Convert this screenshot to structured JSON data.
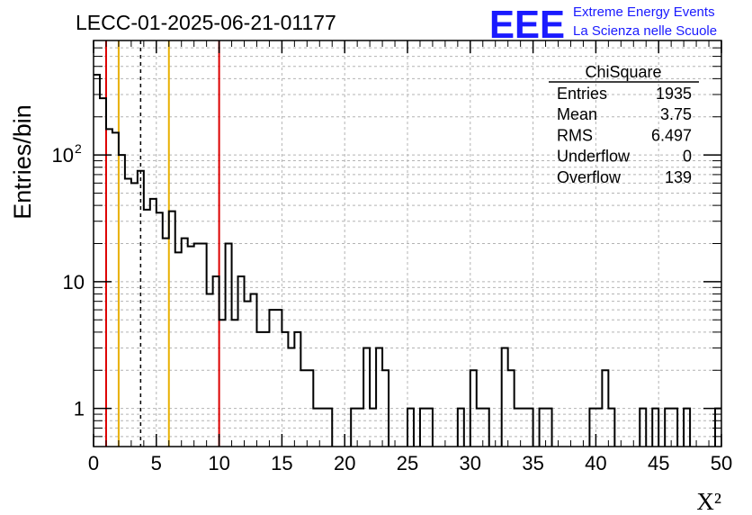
{
  "header": {
    "title": "LECC-01-2025-06-21-01177",
    "logo_text": "EEE",
    "logo_line1": "Extreme Energy Events",
    "logo_line2": "La Scienza nelle Scuole",
    "logo_color": "#1a1aff"
  },
  "stats_box": {
    "title": "ChiSquare",
    "rows": [
      {
        "label": "Entries",
        "value": "1935"
      },
      {
        "label": "Mean",
        "value": "3.75"
      },
      {
        "label": "RMS",
        "value": "6.497"
      },
      {
        "label": "Underflow",
        "value": "0"
      },
      {
        "label": "Overflow",
        "value": "139"
      }
    ]
  },
  "chart_data": {
    "type": "histogram",
    "xlabel": "X²",
    "ylabel": "Entries/bin",
    "xlim": [
      0,
      50
    ],
    "ylim": [
      0.5,
      800
    ],
    "ylog": true,
    "grid": true,
    "bin_width": 1,
    "x_ticks": [
      "0",
      "5",
      "10",
      "15",
      "20",
      "25",
      "30",
      "35",
      "40",
      "45",
      "50"
    ],
    "x_tick_values": [
      0,
      5,
      10,
      15,
      20,
      25,
      30,
      35,
      40,
      45,
      50
    ],
    "y_ticks": [
      {
        "value": 1,
        "label": "1"
      },
      {
        "value": 10,
        "label": "10"
      },
      {
        "value": 100,
        "label": "10",
        "exponent": "2"
      }
    ],
    "bins_from": 0,
    "bin_step": 0.5,
    "counts": [
      430,
      280,
      160,
      150,
      100,
      65,
      60,
      75,
      37,
      45,
      35,
      22,
      36,
      17,
      22,
      19,
      20,
      20,
      8,
      11,
      5,
      20,
      5,
      11,
      7,
      8,
      4,
      4,
      6,
      6,
      4,
      3,
      4,
      2,
      2,
      1,
      1,
      1,
      0,
      0,
      0,
      1,
      1,
      3,
      1,
      3,
      2,
      0,
      0,
      0,
      1,
      0,
      1,
      1,
      0,
      0,
      0,
      0,
      1,
      0,
      2,
      1,
      1,
      0,
      0,
      3,
      2,
      1,
      1,
      1,
      0,
      1,
      1,
      0,
      0,
      0,
      0,
      0,
      0,
      1,
      1,
      2,
      1,
      0,
      0,
      0,
      0,
      1,
      0,
      1,
      0,
      1,
      1,
      0,
      1,
      0,
      0,
      0,
      0,
      1
    ],
    "vertical_lines": [
      {
        "x": 1,
        "color": "#dd0000",
        "style": "solid"
      },
      {
        "x": 2,
        "color": "#e8b000",
        "style": "solid"
      },
      {
        "x": 3.75,
        "color": "#000000",
        "style": "dashed"
      },
      {
        "x": 6,
        "color": "#e8b000",
        "style": "solid"
      },
      {
        "x": 10,
        "color": "#dd0000",
        "style": "solid"
      }
    ]
  }
}
